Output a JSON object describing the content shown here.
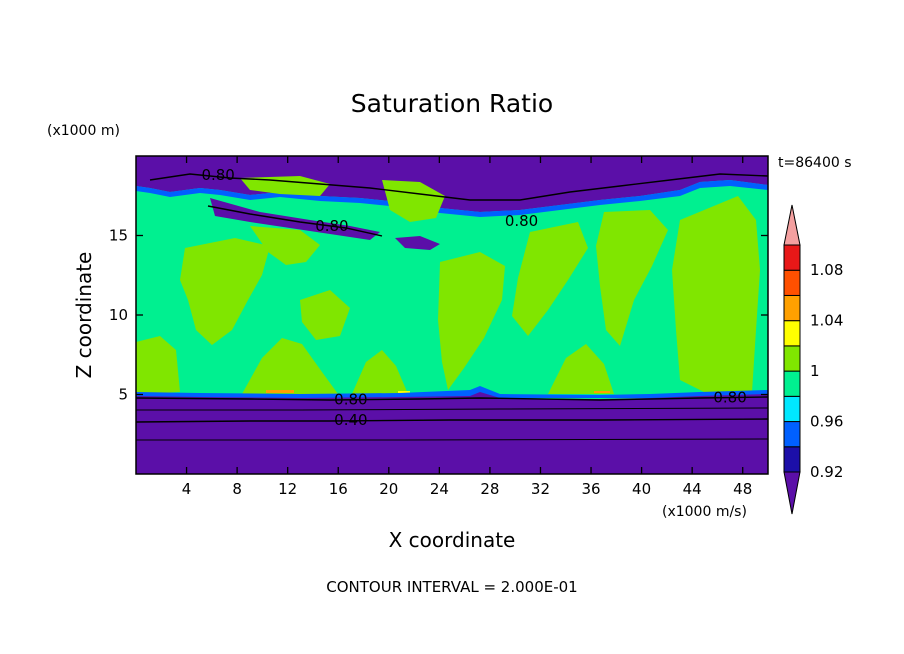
{
  "chart_data": {
    "type": "heatmap",
    "title": "Saturation Ratio",
    "xlabel": "X coordinate",
    "ylabel": "Z coordinate",
    "x_unit": "(x1000 m/s)",
    "y_unit": "(x1000 m)",
    "time_label": "t=86400 s",
    "footer": "CONTOUR INTERVAL = 2.000E-01",
    "xlim": [
      0,
      50
    ],
    "ylim": [
      0,
      20
    ],
    "x_ticks": [
      4,
      8,
      12,
      16,
      20,
      24,
      28,
      32,
      36,
      40,
      44,
      48
    ],
    "y_ticks": [
      5,
      10,
      15
    ],
    "colorbar": {
      "levels": [
        0.92,
        0.94,
        0.96,
        0.98,
        1,
        1.02,
        1.04,
        1.06,
        1.08,
        1.1
      ],
      "labels": [
        "0.92",
        "0.96",
        "1",
        "1.04",
        "1.08"
      ],
      "colors": [
        "#5b0fa8",
        "#1c0fa8",
        "#0060ff",
        "#00e8ff",
        "#00f090",
        "#80e600",
        "#ffff00",
        "#ffa000",
        "#ff5000",
        "#e81818",
        "#f4a0a0"
      ]
    },
    "contour_labels": [
      {
        "text": "0.80",
        "x": 6.5,
        "z": 18.8
      },
      {
        "text": "0.80",
        "x": 15.5,
        "z": 15.6
      },
      {
        "text": "0.80",
        "x": 30.5,
        "z": 15.9
      },
      {
        "text": "0.80",
        "x": 17.0,
        "z": 4.7
      },
      {
        "text": "0.40",
        "x": 17.0,
        "z": 3.4
      },
      {
        "text": "0.80",
        "x": 47.0,
        "z": 4.8
      }
    ],
    "regions": {
      "cloud_layer": {
        "z_bottom": 5.0,
        "z_top": 15.5,
        "dominant": "1"
      },
      "lower_dry_layer": {
        "z_bottom": 0,
        "z_top": 5.0,
        "dominant": "0.92"
      },
      "upper_dry_layer": {
        "z_bottom": 18.5,
        "z_top": 20,
        "dominant": "0.92"
      }
    }
  }
}
